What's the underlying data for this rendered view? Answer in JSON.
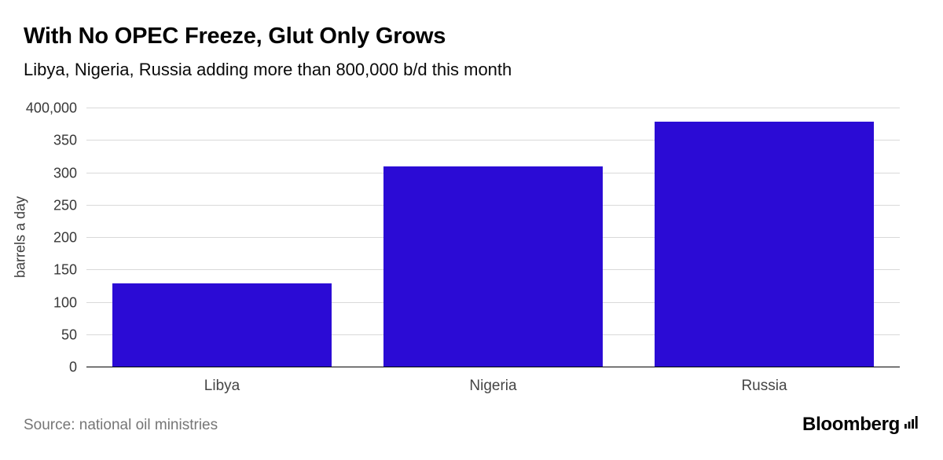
{
  "header": {
    "title": "With No OPEC Freeze, Glut Only Grows",
    "subtitle": "Libya, Nigeria, Russia adding more than 800,000 b/d this month"
  },
  "chart_data": {
    "type": "bar",
    "title": "With No OPEC Freeze, Glut Only Grows",
    "subtitle": "Libya, Nigeria, Russia adding more than 800,000 b/d this month",
    "categories": [
      "Libya",
      "Nigeria",
      "Russia"
    ],
    "values": [
      130,
      310,
      380
    ],
    "values_note": "thousands of barrels a day (axis top tick labeled 400,000)",
    "xlabel": "",
    "ylabel": "barrels a day",
    "ylim": [
      0,
      400
    ],
    "yticks": [
      0,
      50,
      100,
      150,
      200,
      250,
      300,
      350,
      400
    ],
    "ytick_labels": [
      "0",
      "50",
      "100",
      "150",
      "200",
      "250",
      "300",
      "350",
      "400,000"
    ],
    "grid": true,
    "legend": false,
    "bar_color": "#2b0bd5",
    "gridline_color": "#d9d9d9",
    "axis_color": "#000000"
  },
  "footer": {
    "source": "Source: national oil ministries",
    "brand": "Bloomberg"
  }
}
